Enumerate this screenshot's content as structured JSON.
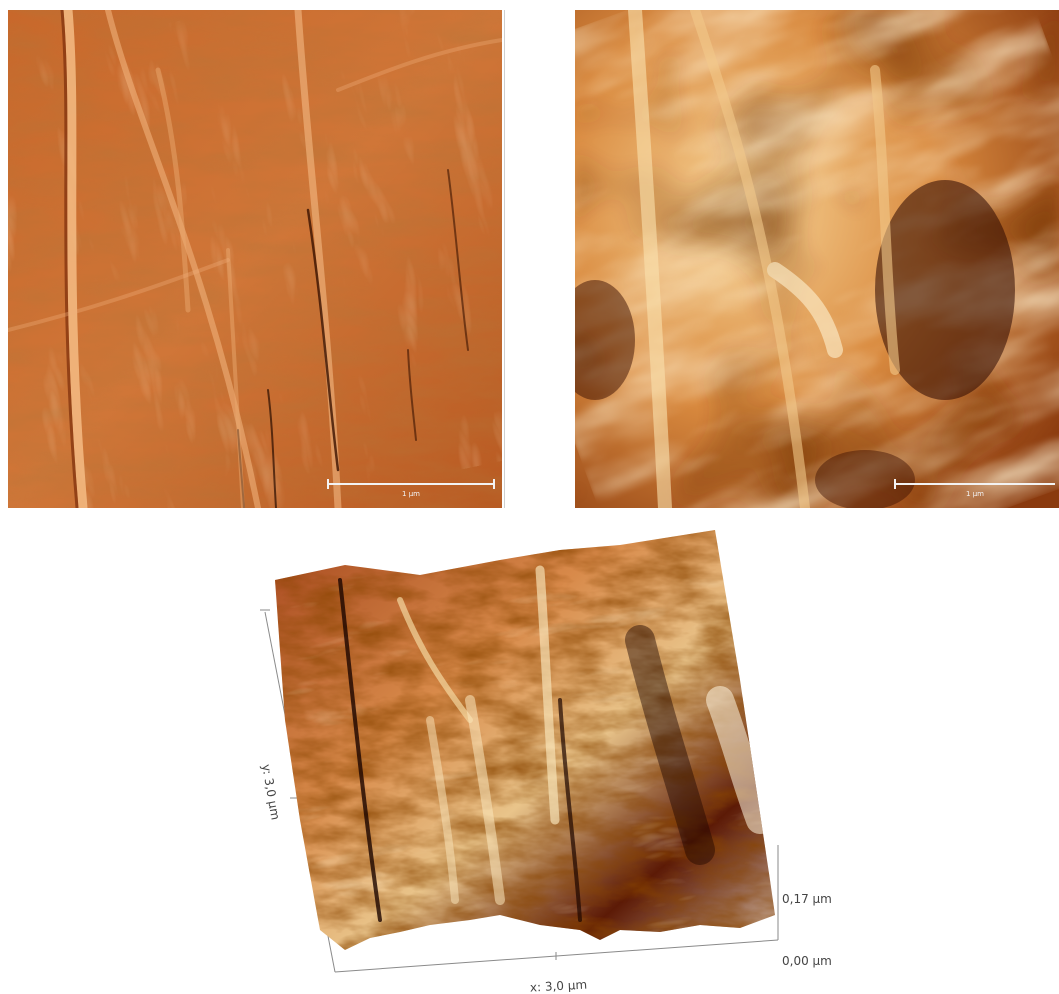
{
  "panels": {
    "amplitude": {
      "scale_label": "1 µm",
      "colors": {
        "dark": "#6b2406",
        "mid": "#c3632a",
        "light": "#f2b076"
      }
    },
    "height": {
      "scale_label": "1 µm",
      "colors": {
        "dark": "#2b0800",
        "mid": "#b5611f",
        "light": "#fbe2ae"
      }
    }
  },
  "view3d": {
    "x_label": "x: 3,0 µm",
    "y_label": "y: 3,0 µm",
    "z_top_label": "0,17 µm",
    "z_bottom_label": "0,00 µm"
  }
}
